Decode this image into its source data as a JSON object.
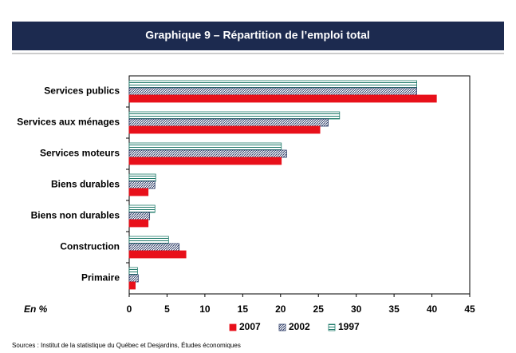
{
  "chart_data": {
    "type": "barh",
    "title": "Graphique 9 – Répartition de l’emploi total",
    "categories": [
      "Services publics",
      "Services aux ménages",
      "Services moteurs",
      "Biens durables",
      "Biens non durables",
      "Construction",
      "Primaire"
    ],
    "series": [
      {
        "name": "1997",
        "color": "#1f7a6a",
        "pattern": "horizontal",
        "values": [
          38.0,
          27.8,
          20.1,
          3.5,
          3.4,
          5.2,
          1.1
        ]
      },
      {
        "name": "2002",
        "color": "#2b3a66",
        "pattern": "diagonal",
        "values": [
          38.0,
          26.3,
          20.8,
          3.4,
          2.7,
          6.6,
          1.2
        ]
      },
      {
        "name": "2007",
        "color": "#e8101a",
        "pattern": "solid",
        "values": [
          40.6,
          25.2,
          20.1,
          2.5,
          2.5,
          7.5,
          0.8
        ]
      }
    ],
    "legend_order": [
      2,
      1,
      0
    ],
    "xlabel": "En %",
    "xlim": [
      0,
      45
    ],
    "xticks": [
      0,
      5,
      10,
      15,
      20,
      25,
      30,
      35,
      40,
      45
    ],
    "source": "Sources : Institut de la statistique du Québec et Desjardins, Études économiques"
  }
}
